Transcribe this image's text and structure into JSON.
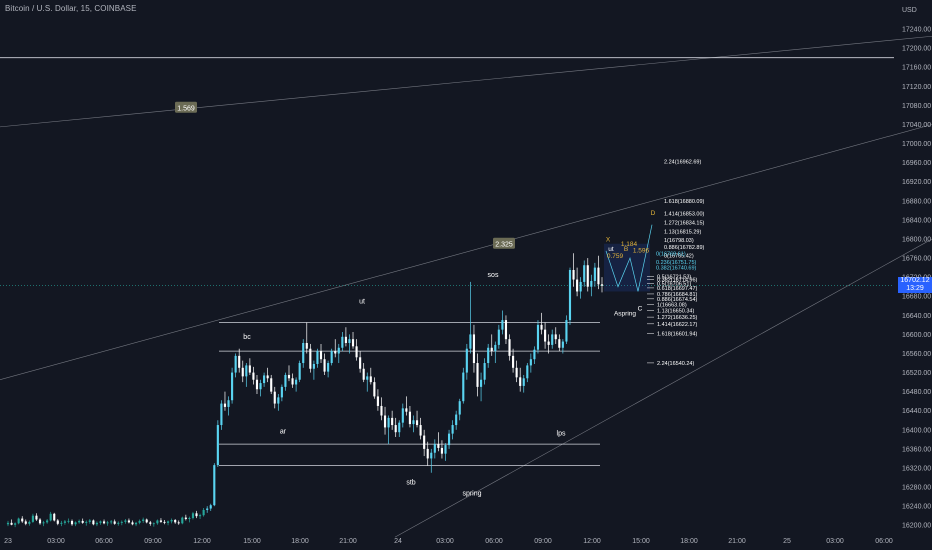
{
  "title": "Bitcoin / U.S. Dollar, 15, COINBASE",
  "currency": "USD",
  "current_price": "16702.12",
  "countdown": "13:29",
  "colors": {
    "bg": "#131722",
    "up": "#26a69a",
    "down": "#ef5350",
    "up_bright": "#5ad4f1",
    "label": "#d1d4dc",
    "accent": "#2962ff",
    "gold": "#e2b43a"
  },
  "chart_data": {
    "type": "candlestick",
    "y_axis": {
      "min": 16190,
      "max": 17280,
      "ticks": [
        16200,
        16240,
        16280,
        16320,
        16360,
        16400,
        16440,
        16480,
        16520,
        16560,
        16600,
        16640,
        16680,
        16720,
        16760,
        16800,
        16840,
        16880,
        16920,
        16960,
        17000,
        17040,
        17080,
        17120,
        17160,
        17200,
        17240
      ]
    },
    "x_axis": {
      "ticks": [
        "23",
        "03:00",
        "06:00",
        "09:00",
        "12:00",
        "15:00",
        "18:00",
        "21:00",
        "24",
        "03:00",
        "06:00",
        "09:00",
        "12:00",
        "15:00",
        "18:00",
        "21:00",
        "25",
        "03:00",
        "06:00"
      ]
    },
    "candles": [
      [
        16202,
        16209,
        16198,
        16205
      ],
      [
        16205,
        16212,
        16200,
        16201
      ],
      [
        16201,
        16206,
        16196,
        16204
      ],
      [
        16204,
        16216,
        16202,
        16214
      ],
      [
        16214,
        16219,
        16205,
        16208
      ],
      [
        16208,
        16212,
        16200,
        16203
      ],
      [
        16203,
        16210,
        16199,
        16207
      ],
      [
        16207,
        16224,
        16205,
        16220
      ],
      [
        16220,
        16225,
        16209,
        16212
      ],
      [
        16212,
        16215,
        16201,
        16204
      ],
      [
        16204,
        16209,
        16198,
        16206
      ],
      [
        16206,
        16213,
        16203,
        16210
      ],
      [
        16210,
        16228,
        16208,
        16224
      ],
      [
        16224,
        16226,
        16208,
        16210
      ],
      [
        16210,
        16213,
        16200,
        16203
      ],
      [
        16203,
        16209,
        16198,
        16205
      ],
      [
        16205,
        16211,
        16201,
        16208
      ],
      [
        16208,
        16214,
        16204,
        16209
      ],
      [
        16209,
        16212,
        16199,
        16202
      ],
      [
        16202,
        16208,
        16198,
        16206
      ],
      [
        16206,
        16212,
        16203,
        16209
      ],
      [
        16209,
        16214,
        16203,
        16205
      ],
      [
        16205,
        16210,
        16199,
        16207
      ],
      [
        16207,
        16213,
        16203,
        16210
      ],
      [
        16210,
        16212,
        16200,
        16202
      ],
      [
        16202,
        16208,
        16198,
        16205
      ],
      [
        16205,
        16210,
        16201,
        16208
      ],
      [
        16208,
        16212,
        16202,
        16204
      ],
      [
        16204,
        16209,
        16199,
        16206
      ],
      [
        16206,
        16211,
        16202,
        16208
      ],
      [
        16208,
        16212,
        16201,
        16203
      ],
      [
        16203,
        16208,
        16199,
        16205
      ],
      [
        16205,
        16210,
        16200,
        16207
      ],
      [
        16207,
        16213,
        16203,
        16210
      ],
      [
        16210,
        16214,
        16204,
        16206
      ],
      [
        16206,
        16210,
        16200,
        16202
      ],
      [
        16202,
        16207,
        16198,
        16205
      ],
      [
        16205,
        16212,
        16202,
        16209
      ],
      [
        16209,
        16216,
        16205,
        16212
      ],
      [
        16212,
        16214,
        16204,
        16206
      ],
      [
        16206,
        16209,
        16199,
        16203
      ],
      [
        16203,
        16206,
        16197,
        16204
      ],
      [
        16204,
        16212,
        16201,
        16210
      ],
      [
        16210,
        16215,
        16205,
        16207
      ],
      [
        16207,
        16211,
        16202,
        16205
      ],
      [
        16205,
        16210,
        16200,
        16208
      ],
      [
        16208,
        16214,
        16204,
        16211
      ],
      [
        16211,
        16213,
        16203,
        16206
      ],
      [
        16206,
        16210,
        16201,
        16204
      ],
      [
        16204,
        16218,
        16202,
        16216
      ],
      [
        16216,
        16222,
        16210,
        16213
      ],
      [
        16213,
        16218,
        16206,
        16215
      ],
      [
        16215,
        16228,
        16212,
        16225
      ],
      [
        16225,
        16230,
        16215,
        16219
      ],
      [
        16219,
        16224,
        16213,
        16221
      ],
      [
        16221,
        16236,
        16218,
        16232
      ],
      [
        16232,
        16240,
        16226,
        16235
      ],
      [
        16235,
        16245,
        16230,
        16242
      ],
      [
        16242,
        16330,
        16240,
        16326
      ],
      [
        16326,
        16420,
        16322,
        16410
      ],
      [
        16410,
        16462,
        16400,
        16455
      ],
      [
        16455,
        16480,
        16440,
        16448
      ],
      [
        16448,
        16470,
        16430,
        16462
      ],
      [
        16462,
        16530,
        16455,
        16520
      ],
      [
        16520,
        16560,
        16510,
        16555
      ],
      [
        16555,
        16570,
        16520,
        16530
      ],
      [
        16530,
        16545,
        16500,
        16512
      ],
      [
        16512,
        16540,
        16490,
        16535
      ],
      [
        16535,
        16550,
        16515,
        16520
      ],
      [
        16520,
        16532,
        16495,
        16505
      ],
      [
        16505,
        16515,
        16475,
        16485
      ],
      [
        16485,
        16505,
        16470,
        16498
      ],
      [
        16498,
        16520,
        16490,
        16514
      ],
      [
        16514,
        16530,
        16500,
        16508
      ],
      [
        16508,
        16515,
        16475,
        16480
      ],
      [
        16480,
        16490,
        16445,
        16455
      ],
      [
        16455,
        16475,
        16440,
        16468
      ],
      [
        16468,
        16495,
        16460,
        16490
      ],
      [
        16490,
        16520,
        16482,
        16515
      ],
      [
        16515,
        16535,
        16502,
        16508
      ],
      [
        16508,
        16518,
        16488,
        16495
      ],
      [
        16495,
        16510,
        16480,
        16505
      ],
      [
        16505,
        16545,
        16500,
        16540
      ],
      [
        16540,
        16590,
        16530,
        16582
      ],
      [
        16582,
        16625,
        16560,
        16570
      ],
      [
        16570,
        16580,
        16520,
        16528
      ],
      [
        16528,
        16545,
        16505,
        16538
      ],
      [
        16538,
        16570,
        16530,
        16565
      ],
      [
        16565,
        16580,
        16540,
        16548
      ],
      [
        16548,
        16560,
        16515,
        16522
      ],
      [
        16522,
        16545,
        16510,
        16540
      ],
      [
        16540,
        16570,
        16535,
        16565
      ],
      [
        16565,
        16590,
        16552,
        16560
      ],
      [
        16560,
        16580,
        16540,
        16572
      ],
      [
        16572,
        16605,
        16565,
        16595
      ],
      [
        16595,
        16615,
        16575,
        16582
      ],
      [
        16582,
        16600,
        16560,
        16590
      ],
      [
        16590,
        16605,
        16570,
        16575
      ],
      [
        16575,
        16590,
        16545,
        16552
      ],
      [
        16552,
        16565,
        16520,
        16528
      ],
      [
        16528,
        16540,
        16500,
        16505
      ],
      [
        16505,
        16520,
        16480,
        16512
      ],
      [
        16512,
        16530,
        16495,
        16500
      ],
      [
        16500,
        16510,
        16465,
        16470
      ],
      [
        16470,
        16485,
        16440,
        16450
      ],
      [
        16450,
        16468,
        16420,
        16430
      ],
      [
        16430,
        16448,
        16390,
        16405
      ],
      [
        16405,
        16430,
        16370,
        16425
      ],
      [
        16425,
        16440,
        16400,
        16410
      ],
      [
        16410,
        16425,
        16385,
        16395
      ],
      [
        16395,
        16420,
        16385,
        16415
      ],
      [
        16415,
        16455,
        16405,
        16445
      ],
      [
        16445,
        16470,
        16430,
        16438
      ],
      [
        16438,
        16450,
        16405,
        16412
      ],
      [
        16412,
        16430,
        16395,
        16420
      ],
      [
        16420,
        16440,
        16405,
        16410
      ],
      [
        16410,
        16425,
        16380,
        16388
      ],
      [
        16388,
        16400,
        16345,
        16360
      ],
      [
        16360,
        16375,
        16325,
        16340
      ],
      [
        16340,
        16360,
        16310,
        16352
      ],
      [
        16352,
        16380,
        16340,
        16370
      ],
      [
        16370,
        16395,
        16355,
        16362
      ],
      [
        16362,
        16378,
        16340,
        16350
      ],
      [
        16350,
        16372,
        16335,
        16368
      ],
      [
        16368,
        16400,
        16360,
        16392
      ],
      [
        16392,
        16420,
        16380,
        16410
      ],
      [
        16410,
        16440,
        16400,
        16432
      ],
      [
        16432,
        16465,
        16420,
        16460
      ],
      [
        16460,
        16530,
        16455,
        16520
      ],
      [
        16520,
        16580,
        16505,
        16570
      ],
      [
        16570,
        16710,
        16560,
        16600
      ],
      [
        16600,
        16620,
        16520,
        16540
      ],
      [
        16540,
        16560,
        16470,
        16490
      ],
      [
        16490,
        16520,
        16460,
        16505
      ],
      [
        16505,
        16550,
        16495,
        16540
      ],
      [
        16540,
        16580,
        16530,
        16572
      ],
      [
        16572,
        16600,
        16555,
        16565
      ],
      [
        16565,
        16585,
        16540,
        16578
      ],
      [
        16578,
        16620,
        16570,
        16610
      ],
      [
        16610,
        16650,
        16600,
        16630
      ],
      [
        16630,
        16640,
        16580,
        16590
      ],
      [
        16590,
        16600,
        16545,
        16555
      ],
      [
        16555,
        16570,
        16520,
        16530
      ],
      [
        16530,
        16545,
        16500,
        16510
      ],
      [
        16510,
        16530,
        16480,
        16492
      ],
      [
        16492,
        16515,
        16478,
        16508
      ],
      [
        16508,
        16540,
        16500,
        16535
      ],
      [
        16535,
        16560,
        16520,
        16548
      ],
      [
        16548,
        16575,
        16538,
        16568
      ],
      [
        16568,
        16630,
        16560,
        16620
      ],
      [
        16620,
        16645,
        16600,
        16610
      ],
      [
        16610,
        16625,
        16570,
        16585
      ],
      [
        16585,
        16600,
        16560,
        16578
      ],
      [
        16578,
        16610,
        16570,
        16600
      ],
      [
        16600,
        16615,
        16580,
        16590
      ],
      [
        16590,
        16600,
        16565,
        16572
      ],
      [
        16572,
        16590,
        16560,
        16585
      ],
      [
        16585,
        16640,
        16580,
        16630
      ],
      [
        16630,
        16740,
        16620,
        16735
      ],
      [
        16735,
        16770,
        16700,
        16715
      ],
      [
        16715,
        16740,
        16680,
        16690
      ],
      [
        16690,
        16720,
        16675,
        16710
      ],
      [
        16710,
        16755,
        16700,
        16745
      ],
      [
        16745,
        16760,
        16690,
        16700
      ],
      [
        16700,
        16725,
        16680,
        16712
      ],
      [
        16712,
        16750,
        16700,
        16740
      ],
      [
        16740,
        16765,
        16695,
        16705
      ],
      [
        16705,
        16720,
        16688,
        16702
      ]
    ],
    "horizontal_lines": [
      17180,
      16625,
      16565,
      16370,
      16325
    ],
    "channel_lines": [
      {
        "x1": 0,
        "y1": 17035,
        "x2": 932,
        "y2": 17225
      },
      {
        "x1": 0,
        "y1": 16505,
        "x2": 932,
        "y2": 17040
      },
      {
        "x1": 395,
        "y1": 16175,
        "x2": 932,
        "y2": 16800
      }
    ],
    "ratio_labels": [
      {
        "text": "1.569",
        "x_index": 0,
        "price": 17075
      },
      {
        "text": "2.325",
        "x_index": 1,
        "price": 16790
      }
    ],
    "wyckoff_labels": [
      {
        "text": "bc",
        "price": 16590
      },
      {
        "text": "ut",
        "price": 16665
      },
      {
        "text": "sos",
        "price": 16720
      },
      {
        "text": "ar",
        "price": 16392
      },
      {
        "text": "lps",
        "price": 16388
      },
      {
        "text": "stb",
        "price": 16285
      },
      {
        "text": "spring",
        "price": 16262
      }
    ],
    "harmonic_labels": [
      "X",
      "ut",
      "B",
      "D",
      "C",
      "Aspring",
      "1.184",
      "1.596",
      "0.759"
    ],
    "fib_upper": [
      {
        "label": "2.24(16962.69)",
        "price": 16962.69
      },
      {
        "label": "1.618(16880.09)",
        "price": 16880.09
      },
      {
        "label": "1.414(16853.00)",
        "price": 16853.0
      },
      {
        "label": "1.272(16834.15)",
        "price": 16834.15
      },
      {
        "label": "1.13(16815.29)",
        "price": 16815.29
      },
      {
        "label": "1(16798.03)",
        "price": 16798.03
      },
      {
        "label": "0.886(16782.89)",
        "price": 16782.89
      },
      {
        "label": "0(16765.42)",
        "price": 16765.42
      }
    ],
    "fib_blue": [
      {
        "label": "0(16769.61)",
        "price": 16769.61
      },
      {
        "label": "0.236(16751.75)",
        "price": 16751.75
      },
      {
        "label": "0.382(16740.69)",
        "price": 16740.69
      }
    ],
    "fib_lower": [
      {
        "label": "0.5(16721.53)",
        "price": 16721.53
      },
      {
        "label": "0.382(16714.96)",
        "price": 16714.96
      },
      {
        "label": "0.5(16706.51)",
        "price": 16706.51
      },
      {
        "label": "0.618(16697.47)",
        "price": 16697.47
      },
      {
        "label": "0.786(16684.81)",
        "price": 16684.81
      },
      {
        "label": "0.886(16674.54)",
        "price": 16674.54
      },
      {
        "label": "1(16663.08)",
        "price": 16663.08
      },
      {
        "label": "1.13(16650.34)",
        "price": 16650.34
      },
      {
        "label": "1.272(16636.25)",
        "price": 16636.25
      },
      {
        "label": "1.414(16622.17)",
        "price": 16622.17
      },
      {
        "label": "1.618(16601.94)",
        "price": 16601.94
      },
      {
        "label": "2.24(16540.24)",
        "price": 16540.24
      }
    ]
  }
}
